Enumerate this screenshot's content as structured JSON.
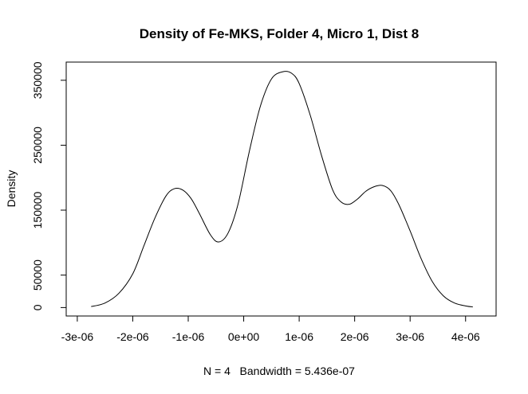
{
  "chart_data": {
    "type": "line",
    "title": "Density of Fe-MKS, Folder 4, Micro 1, Dist 8",
    "xlabel": "N = 4   Bandwidth = 5.436e-07",
    "ylabel": "Density",
    "xlim": [
      -3.2e-06,
      4.55e-06
    ],
    "ylim": [
      -13000,
      378000
    ],
    "x_ticks": [
      -3e-06,
      -2e-06,
      -1e-06,
      0,
      1e-06,
      2e-06,
      3e-06,
      4e-06
    ],
    "x_tick_labels": [
      "-3e-06",
      "-2e-06",
      "-1e-06",
      "0e+00",
      "1e-06",
      "2e-06",
      "3e-06",
      "4e-06"
    ],
    "y_ticks": [
      0,
      50000,
      150000,
      250000,
      350000
    ],
    "y_tick_labels": [
      "0",
      "50000",
      "150000",
      "250000",
      "350000"
    ],
    "grid": false,
    "series": [
      {
        "x": [
          -2.75e-06,
          -2.5e-06,
          -2.25e-06,
          -2e-06,
          -1.8e-06,
          -1.6e-06,
          -1.4e-06,
          -1.25e-06,
          -1.1e-06,
          -9.5e-07,
          -8e-07,
          -6e-07,
          -4.5e-07,
          -2.8e-07,
          -1e-07,
          1e-07,
          3e-07,
          5e-07,
          7e-07,
          8.6e-07,
          1e-06,
          1.2e-06,
          1.4e-06,
          1.6e-06,
          1.75e-06,
          1.9e-06,
          2.05e-06,
          2.2e-06,
          2.35e-06,
          2.5e-06,
          2.65e-06,
          2.8e-06,
          3e-06,
          3.2e-06,
          3.4e-06,
          3.6e-06,
          3.8e-06,
          4e-06,
          4.13e-06
        ],
        "y": [
          1500,
          7000,
          22000,
          52000,
          95000,
          138000,
          172000,
          183000,
          181000,
          168000,
          145000,
          112000,
          101000,
          115000,
          160000,
          240000,
          310000,
          352000,
          363000,
          361000,
          345000,
          296000,
          235000,
          182000,
          163000,
          159000,
          167000,
          179000,
          186000,
          188000,
          180000,
          158000,
          118000,
          75000,
          40000,
          18000,
          7000,
          2500,
          1000
        ]
      }
    ]
  }
}
